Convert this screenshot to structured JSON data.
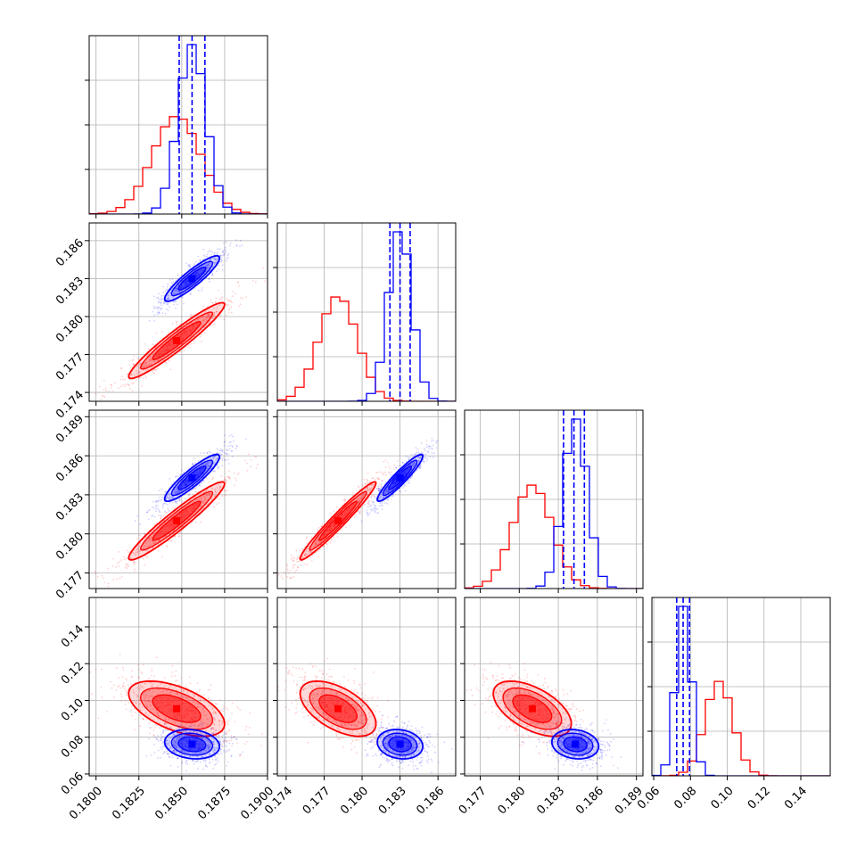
{
  "chart_data": {
    "type": "corner",
    "parameters": 4,
    "colors": {
      "red": "#ff0000",
      "blue": "#0000ff",
      "grid": "#b0b0b0"
    },
    "grid": true,
    "axes": [
      {
        "range": [
          0.1796,
          0.19
        ],
        "ticks": [
          0.18,
          0.1825,
          0.185,
          0.1875,
          0.19
        ],
        "tick_labels": [
          "0.1800",
          "0.1825",
          "0.1850",
          "0.1875",
          "0.1900"
        ]
      },
      {
        "range": [
          0.1733,
          0.1874
        ],
        "ticks": [
          0.174,
          0.177,
          0.18,
          0.183,
          0.186
        ],
        "tick_labels": [
          "0.174",
          "0.177",
          "0.180",
          "0.183",
          "0.186"
        ]
      },
      {
        "range": [
          0.1758,
          0.1895
        ],
        "ticks": [
          0.177,
          0.18,
          0.183,
          0.186,
          0.189
        ],
        "tick_labels": [
          "0.177",
          "0.180",
          "0.183",
          "0.186",
          "0.189"
        ]
      },
      {
        "range": [
          0.059,
          0.156
        ],
        "ticks": [
          0.06,
          0.08,
          0.1,
          0.12,
          0.14
        ],
        "tick_labels": [
          "0.06",
          "0.08",
          "0.10",
          "0.12",
          "0.14"
        ]
      }
    ],
    "series": [
      {
        "color": "red",
        "mean": [
          0.1847,
          0.1781,
          0.181,
          0.0955
        ],
        "sigma": [
          0.0014,
          0.0015,
          0.0015,
          0.0075
        ]
      },
      {
        "color": "blue",
        "mean": [
          0.1856,
          0.183,
          0.1843,
          0.0762
        ],
        "sigma": [
          0.0008,
          0.0009,
          0.0009,
          0.004
        ]
      }
    ],
    "correlations": {
      "red": {
        "1-0": 0.95,
        "2-0": 0.95,
        "2-1": 0.97,
        "3-0": -0.55,
        "3-1": -0.55,
        "3-2": -0.55
      },
      "blue": {
        "1-0": 0.9,
        "2-0": 0.9,
        "2-1": 0.93,
        "3-0": -0.15,
        "3-1": -0.15,
        "3-2": -0.15
      }
    },
    "quantile_lines": {
      "color": "blue",
      "style": "dashed",
      "values": [
        [
          0.18485,
          0.1856,
          0.18635
        ],
        [
          0.1822,
          0.183,
          0.1838
        ],
        [
          0.1834,
          0.1842,
          0.185
        ],
        [
          0.0725,
          0.076,
          0.0795
        ]
      ]
    }
  }
}
